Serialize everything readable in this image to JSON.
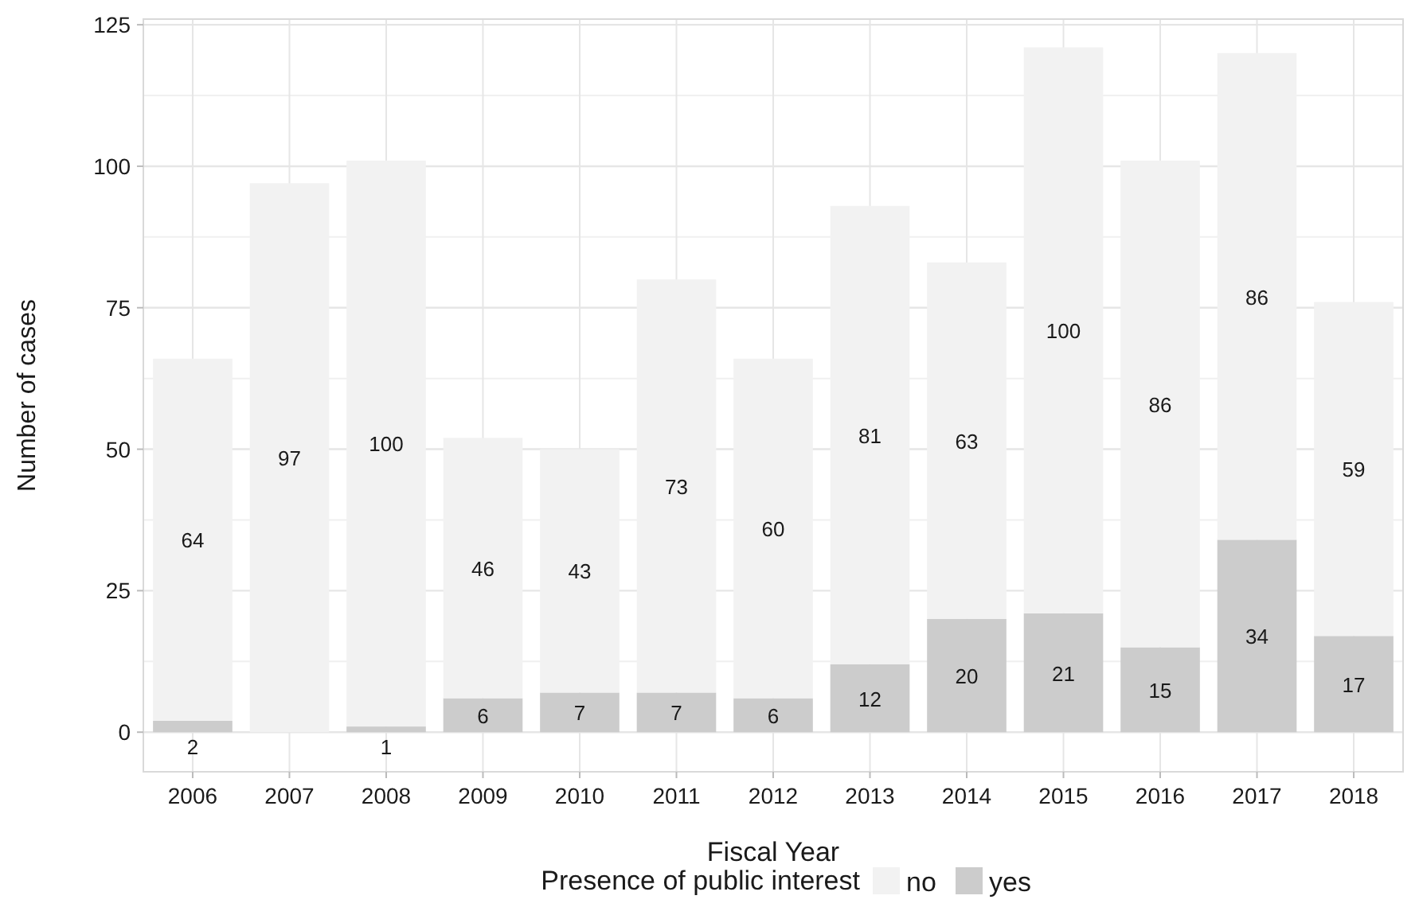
{
  "chart_data": {
    "type": "bar",
    "stacked": true,
    "xlabel": "Fiscal Year",
    "ylabel": "Number of cases",
    "legend_title": "Presence of public interest",
    "legend": "bottom",
    "grid": true,
    "data_labels": true,
    "categories": [
      "2006",
      "2007",
      "2008",
      "2009",
      "2010",
      "2011",
      "2012",
      "2013",
      "2014",
      "2015",
      "2016",
      "2017",
      "2018"
    ],
    "ylim": [
      -7,
      126
    ],
    "yticks": [
      0,
      {
        "value": 12.5,
        "label": null
      },
      25,
      {
        "value": 37.5,
        "label": null
      },
      50,
      {
        "value": 62.5,
        "label": null
      },
      75,
      {
        "value": 87.5,
        "label": null
      },
      100,
      {
        "value": 112.5,
        "label": null
      },
      125
    ],
    "series": [
      {
        "name": "yes",
        "color": "#cccccc",
        "values": [
          2,
          0,
          1,
          6,
          7,
          7,
          6,
          12,
          20,
          21,
          15,
          34,
          17
        ],
        "value_labels": [
          "2",
          null,
          "1",
          "6",
          "7",
          "7",
          "6",
          "12",
          "20",
          "21",
          "15",
          "34",
          "17"
        ]
      },
      {
        "name": "no",
        "color": "#f2f2f2",
        "values": [
          64,
          97,
          100,
          46,
          43,
          73,
          60,
          81,
          63,
          100,
          86,
          86,
          59
        ]
      }
    ]
  }
}
